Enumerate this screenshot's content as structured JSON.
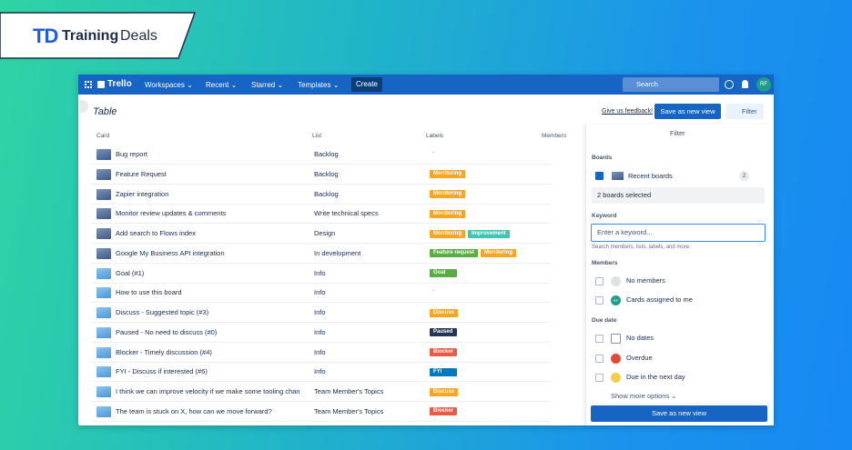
{
  "brand": {
    "initials": "TD",
    "name_bold": "Training",
    "name_rest": "Deals"
  },
  "nav": {
    "logo": "Trello",
    "menus": [
      "Workspaces",
      "Recent",
      "Starred",
      "Templates"
    ],
    "create": "Create",
    "search": "Search",
    "avatar": "RF"
  },
  "toolbar": {
    "title": "Table",
    "feedback": "Give us feedback!",
    "save": "Save as new view",
    "filter": "Filter"
  },
  "table": {
    "columns": [
      "Card",
      "List",
      "Labels",
      "Members"
    ],
    "rows": [
      {
        "card": "Bug report",
        "list": "Backlog",
        "labels": "-",
        "thumb": "dark"
      },
      {
        "card": "Feature Request",
        "list": "Backlog",
        "labels": [
          {
            "text": "Monitoring",
            "color": "#f5a623"
          }
        ],
        "thumb": "dark"
      },
      {
        "card": "Zapier integration",
        "list": "Backlog",
        "labels": [
          {
            "text": "Monitoring",
            "color": "#f5a623"
          }
        ],
        "thumb": "dark"
      },
      {
        "card": "Monitor review updates & comments",
        "list": "Write technical specs",
        "labels": [
          {
            "text": "Monitoring",
            "color": "#f5a623"
          }
        ],
        "thumb": "dark"
      },
      {
        "card": "Add search to Flows index",
        "list": "Design",
        "labels": [
          {
            "text": "Monitoring",
            "color": "#f5a623"
          },
          {
            "text": "Improvement",
            "color": "#3fc5b4"
          }
        ],
        "thumb": "dark"
      },
      {
        "card": "Google My Business API integration",
        "list": "In development",
        "labels": [
          {
            "text": "Feature request",
            "color": "#5aac44"
          },
          {
            "text": "Monitoring",
            "color": "#f5a623"
          }
        ],
        "thumb": "dark"
      },
      {
        "card": "Goal (#1)",
        "list": "Info",
        "labels": [
          {
            "text": "Goal",
            "color": "#5aac44"
          }
        ],
        "thumb": "light"
      },
      {
        "card": "How to use this board",
        "list": "Info",
        "labels": "-",
        "thumb": "light"
      },
      {
        "card": "Discuss - Suggested topic (#3)",
        "list": "Info",
        "labels": [
          {
            "text": "Discuss",
            "color": "#f5a623"
          }
        ],
        "thumb": "light"
      },
      {
        "card": "Paused - No need to discuss (#0)",
        "list": "Info",
        "labels": [
          {
            "text": "Paused",
            "color": "#253858"
          }
        ],
        "thumb": "light"
      },
      {
        "card": "Blocker - Timely discussion (#4)",
        "list": "Info",
        "labels": [
          {
            "text": "Blocker",
            "color": "#eb5a46"
          }
        ],
        "thumb": "light"
      },
      {
        "card": "FYI - Discuss if interested (#6)",
        "list": "Info",
        "labels": [
          {
            "text": "FYI",
            "color": "#0079bf"
          }
        ],
        "thumb": "light"
      },
      {
        "card": "I think we can improve velocity if we make some tooling chan",
        "list": "Team Member's Topics",
        "labels": [
          {
            "text": "Discuss",
            "color": "#f5a623"
          }
        ],
        "thumb": "light"
      },
      {
        "card": "The team is stuck on X, how can we move forward?",
        "list": "Team Member's Topics",
        "labels": [
          {
            "text": "Blocker",
            "color": "#eb5a46"
          }
        ],
        "thumb": "light"
      }
    ]
  },
  "filter_panel": {
    "title": "Filter",
    "boards_heading": "Boards",
    "board_option": "Recent boards",
    "board_count": "2",
    "boards_selected": "2 boards selected",
    "keyword_heading": "Keyword",
    "keyword_placeholder": "Enter a keyword...",
    "keyword_hint": "Search members, lists, labels, and more.",
    "members_heading": "Members",
    "members_options": [
      "No members",
      "Cards assigned to me"
    ],
    "member_avatar": "RF",
    "due_heading": "Due date",
    "due_options": [
      "No dates",
      "Overdue",
      "Due in the next day"
    ],
    "more": "Show more options",
    "save": "Save as new view"
  }
}
